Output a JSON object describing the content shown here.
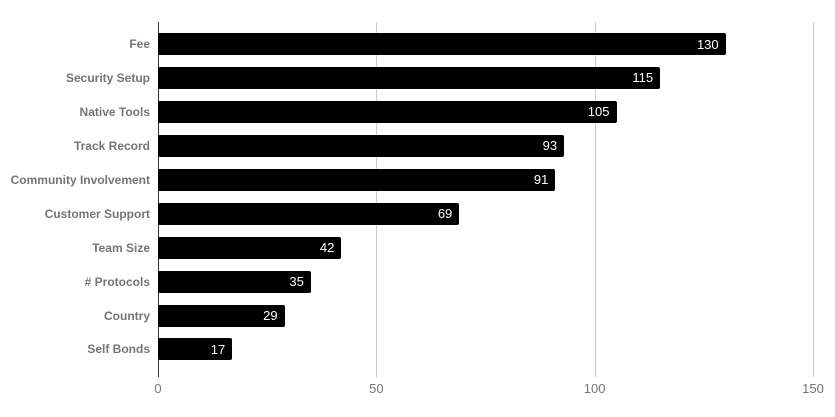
{
  "chart_data": {
    "type": "bar",
    "orientation": "horizontal",
    "title": "",
    "legend": "none",
    "grid": true,
    "categories": [
      "Fee",
      "Security Setup",
      "Native Tools",
      "Track Record",
      "Community Involvement",
      "Customer Support",
      "Team Size",
      "# Protocols",
      "Country",
      "Self Bonds"
    ],
    "values": [
      130,
      115,
      105,
      93,
      91,
      69,
      42,
      35,
      29,
      17
    ],
    "xlim": [
      0,
      150
    ],
    "x_ticks": [
      0,
      50,
      100,
      150
    ],
    "colors": {
      "bar": "#000000",
      "value_label": "#ffffff",
      "category_label": "#757575",
      "tick_label": "#757575",
      "gridline": "#cccccc",
      "baseline": "#333333",
      "background": "#ffffff"
    }
  }
}
